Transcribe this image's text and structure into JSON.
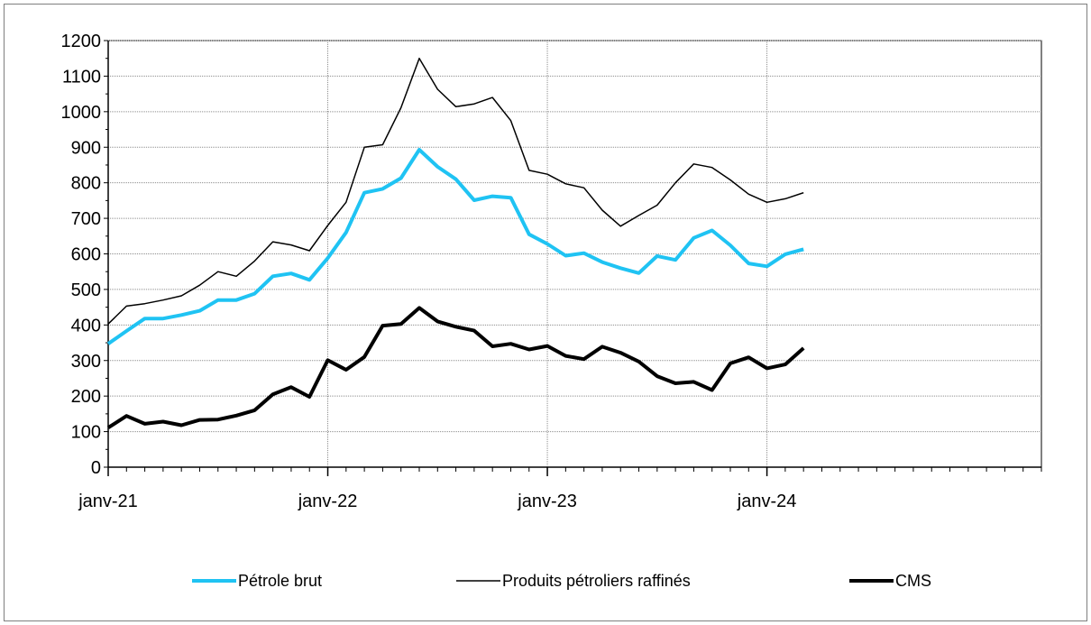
{
  "chart_data": {
    "type": "line",
    "title": "",
    "xlabel": "",
    "ylabel": "",
    "ylim": [
      0,
      1200
    ],
    "y_ticks": [
      0,
      100,
      200,
      300,
      400,
      500,
      600,
      700,
      800,
      900,
      1000,
      1100,
      1200
    ],
    "x_ticks": [
      "janv-21",
      "janv-22",
      "janv-23",
      "janv-24"
    ],
    "x_range": [
      "2021-01",
      "2025-04"
    ],
    "grid": true,
    "legend_position": "bottom",
    "x": [
      "2021-01",
      "2021-02",
      "2021-03",
      "2021-04",
      "2021-05",
      "2021-06",
      "2021-07",
      "2021-08",
      "2021-09",
      "2021-10",
      "2021-11",
      "2021-12",
      "2022-01",
      "2022-02",
      "2022-03",
      "2022-04",
      "2022-05",
      "2022-06",
      "2022-07",
      "2022-08",
      "2022-09",
      "2022-10",
      "2022-11",
      "2022-12",
      "2023-01",
      "2023-02",
      "2023-03",
      "2023-04",
      "2023-05",
      "2023-06",
      "2023-07",
      "2023-08",
      "2023-09",
      "2023-10",
      "2023-11",
      "2023-12",
      "2024-01",
      "2024-02",
      "2024-03"
    ],
    "series": [
      {
        "name": "Pétrole brut",
        "color": "#1fc3f3",
        "values": [
          347,
          383,
          418,
          418,
          428,
          440,
          470,
          470,
          488,
          537,
          545,
          527,
          588,
          660,
          772,
          783,
          813,
          893,
          845,
          810,
          751,
          762,
          758,
          655,
          628,
          595,
          602,
          577,
          560,
          546,
          594,
          583,
          645,
          666,
          624,
          573,
          565,
          599,
          613
        ]
      },
      {
        "name": "Produits pétroliers raffinés",
        "color": "#000000",
        "values": [
          403,
          453,
          460,
          470,
          482,
          512,
          550,
          537,
          580,
          634,
          625,
          609,
          680,
          745,
          900,
          907,
          1011,
          1150,
          1063,
          1014,
          1022,
          1040,
          975,
          835,
          824,
          797,
          786,
          723,
          678,
          708,
          737,
          800,
          853,
          843,
          808,
          768,
          745,
          755,
          772
        ]
      },
      {
        "name": "CMS",
        "color": "#000000",
        "values": [
          111,
          144,
          122,
          128,
          118,
          133,
          134,
          145,
          160,
          205,
          225,
          198,
          301,
          274,
          310,
          398,
          403,
          448,
          410,
          395,
          384,
          340,
          347,
          331,
          341,
          313,
          304,
          339,
          322,
          297,
          256,
          236,
          240,
          217,
          292,
          309,
          278,
          289,
          335
        ]
      }
    ]
  }
}
